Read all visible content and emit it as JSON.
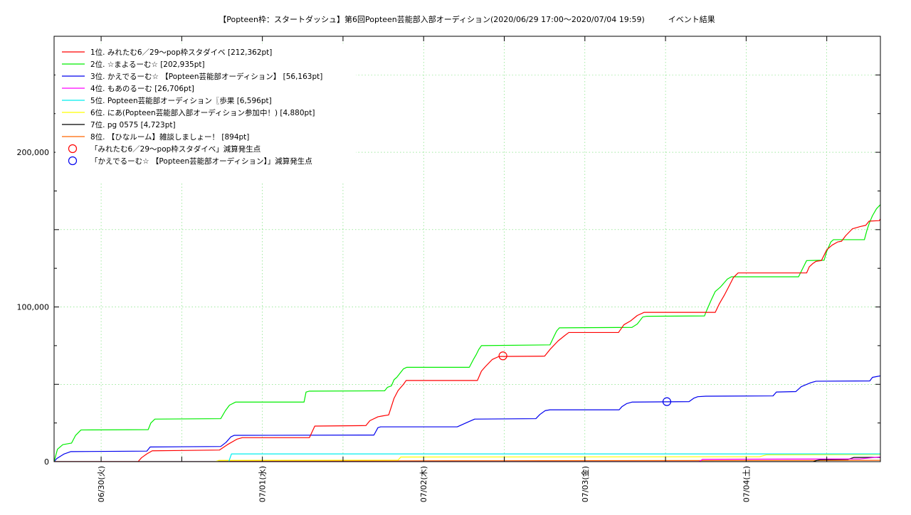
{
  "chart_data": {
    "type": "line",
    "title": "【Popteen枠：スタートダッシュ】第6回Popteen芸能部入部オーディション(2020/06/29 17:00〜2020/07/04 19:59)　　　イベント結果",
    "xlabel": "",
    "ylabel": "",
    "x_unit": "hours since 2020/06/29 17:00",
    "xlim": [
      0,
      122.98
    ],
    "ylim": [
      0,
      275000
    ],
    "grid": true,
    "legend_position": "top-left",
    "y_ticks": [
      {
        "value": 0,
        "label": "0"
      },
      {
        "value": 100000,
        "label": "100,000"
      },
      {
        "value": 200000,
        "label": "200,000"
      }
    ],
    "x_ticks": [
      {
        "value": 7,
        "label": "06/30(火)"
      },
      {
        "value": 31,
        "label": "07/01(水)"
      },
      {
        "value": 55,
        "label": "07/02(木)"
      },
      {
        "value": 79,
        "label": "07/03(金)"
      },
      {
        "value": 103,
        "label": "07/04(土)"
      }
    ],
    "series": [
      {
        "name": "1位. みれたむ6／29〜pop枠スタダイベ [212,362pt]",
        "color": "#ff0000",
        "points": [
          [
            0,
            0
          ],
          [
            12.5,
            0
          ],
          [
            13,
            2500
          ],
          [
            13.8,
            5000
          ],
          [
            14.6,
            7000
          ],
          [
            24.6,
            7500
          ],
          [
            25.8,
            11000
          ],
          [
            27.2,
            14500
          ],
          [
            28,
            15500
          ],
          [
            38,
            15500
          ],
          [
            38.8,
            23000
          ],
          [
            46.4,
            23300
          ],
          [
            47,
            26500
          ],
          [
            48.2,
            29000
          ],
          [
            48.8,
            29500
          ],
          [
            49.8,
            30200
          ],
          [
            50.6,
            41000
          ],
          [
            51.2,
            46000
          ],
          [
            52,
            50000
          ],
          [
            52.4,
            52500
          ],
          [
            63,
            52500
          ],
          [
            63.6,
            58500
          ],
          [
            64.2,
            61500
          ],
          [
            65.2,
            66000
          ],
          [
            66.2,
            68000
          ],
          [
            73,
            68200
          ],
          [
            73.8,
            72500
          ],
          [
            75,
            78000
          ],
          [
            76,
            81500
          ],
          [
            76.6,
            83500
          ],
          [
            84,
            83500
          ],
          [
            84.8,
            88500
          ],
          [
            85.8,
            91000
          ],
          [
            86.8,
            94500
          ],
          [
            87.8,
            96500
          ],
          [
            98.4,
            96500
          ],
          [
            99,
            102000
          ],
          [
            99.8,
            108000
          ],
          [
            100.4,
            113000
          ],
          [
            101.1,
            119000
          ],
          [
            101.8,
            122000
          ],
          [
            112,
            122000
          ],
          [
            112.4,
            126000
          ],
          [
            112.9,
            128000
          ],
          [
            113.4,
            129500
          ],
          [
            114.2,
            130000
          ],
          [
            115,
            137000
          ],
          [
            115.8,
            140000
          ],
          [
            116.6,
            142000
          ],
          [
            117.2,
            142500
          ],
          [
            117.8,
            146000
          ],
          [
            118.8,
            150500
          ],
          [
            120,
            152000
          ],
          [
            120.8,
            152800
          ],
          [
            121.3,
            155500
          ],
          [
            122.8,
            155800
          ],
          [
            123.6,
            160500
          ],
          [
            124.4,
            165000
          ],
          [
            125.2,
            170000
          ],
          [
            125.8,
            171500
          ],
          [
            126.6,
            176500
          ],
          [
            127.6,
            179000
          ],
          [
            129.6,
            179200
          ],
          [
            130,
            195000
          ],
          [
            130.2,
            211500
          ],
          [
            132.5,
            212362
          ]
        ]
      },
      {
        "name": "2位. ☆まよるーむ☆ [202,935pt]",
        "color": "#00ee00",
        "points": [
          [
            0,
            0
          ],
          [
            0.5,
            8000
          ],
          [
            1.3,
            11000
          ],
          [
            2.6,
            12000
          ],
          [
            3.2,
            17000
          ],
          [
            4,
            20500
          ],
          [
            14,
            20700
          ],
          [
            14.4,
            25000
          ],
          [
            15,
            27500
          ],
          [
            24.8,
            27800
          ],
          [
            25.5,
            33000
          ],
          [
            26.1,
            36500
          ],
          [
            27,
            38500
          ],
          [
            37.2,
            38500
          ],
          [
            37.5,
            45000
          ],
          [
            38,
            45600
          ],
          [
            49.2,
            45800
          ],
          [
            49.6,
            48000
          ],
          [
            50.2,
            49000
          ],
          [
            50.6,
            53000
          ],
          [
            51,
            54500
          ],
          [
            52,
            60000
          ],
          [
            52.5,
            61000
          ],
          [
            61.8,
            61000
          ],
          [
            62.4,
            66000
          ],
          [
            62.8,
            69000
          ],
          [
            63.2,
            72500
          ],
          [
            63.6,
            75000
          ],
          [
            73.8,
            75500
          ],
          [
            74.4,
            81000
          ],
          [
            74.8,
            84500
          ],
          [
            75.2,
            86500
          ],
          [
            86,
            86800
          ],
          [
            86.8,
            89000
          ],
          [
            87.6,
            93500
          ],
          [
            88.2,
            94000
          ],
          [
            96.8,
            94200
          ],
          [
            97,
            96500
          ],
          [
            97.8,
            104500
          ],
          [
            98.4,
            110000
          ],
          [
            99.2,
            113000
          ],
          [
            100.2,
            118000
          ],
          [
            100.8,
            119500
          ],
          [
            110.8,
            119500
          ],
          [
            111.6,
            126500
          ],
          [
            112,
            130000
          ],
          [
            114.6,
            130200
          ],
          [
            115,
            136000
          ],
          [
            115.6,
            142000
          ],
          [
            116,
            143500
          ],
          [
            120.6,
            143500
          ],
          [
            121,
            150000
          ],
          [
            121.4,
            155000
          ],
          [
            121.8,
            159000
          ],
          [
            122.4,
            163500
          ],
          [
            123.4,
            168000
          ],
          [
            123.8,
            171000
          ],
          [
            124.6,
            177000
          ],
          [
            125.6,
            184500
          ],
          [
            126.2,
            191000
          ],
          [
            127,
            198000
          ],
          [
            127.6,
            202800
          ],
          [
            130.2,
            202935
          ]
        ]
      },
      {
        "name": "3位. かえでるーむ☆ 【Popteen芸能部オーディション】 [56,163pt]",
        "color": "#0000ee",
        "points": [
          [
            0,
            0
          ],
          [
            0.4,
            2000
          ],
          [
            1.5,
            5000
          ],
          [
            2.5,
            6500
          ],
          [
            13.8,
            6800
          ],
          [
            14.3,
            9500
          ],
          [
            24.8,
            9800
          ],
          [
            25.6,
            12500
          ],
          [
            26.3,
            16000
          ],
          [
            26.8,
            17000
          ],
          [
            47.6,
            17200
          ],
          [
            48.2,
            22000
          ],
          [
            48.6,
            22500
          ],
          [
            60,
            22500
          ],
          [
            61.8,
            26000
          ],
          [
            62.6,
            27500
          ],
          [
            71.7,
            27800
          ],
          [
            72.3,
            30500
          ],
          [
            73.1,
            33000
          ],
          [
            73.8,
            33500
          ],
          [
            84.1,
            33500
          ],
          [
            84.5,
            35500
          ],
          [
            85.2,
            37500
          ],
          [
            86,
            38500
          ],
          [
            94.5,
            38800
          ],
          [
            95.2,
            41000
          ],
          [
            95.8,
            42000
          ],
          [
            97,
            42300
          ],
          [
            107,
            42500
          ],
          [
            107.5,
            45000
          ],
          [
            110.4,
            45300
          ],
          [
            111.2,
            48500
          ],
          [
            112.6,
            51000
          ],
          [
            113.4,
            52000
          ],
          [
            121.4,
            52200
          ],
          [
            121.8,
            54500
          ],
          [
            123,
            55500
          ],
          [
            124.7,
            56163
          ],
          [
            132.5,
            56163
          ]
        ]
      },
      {
        "name": "4位. もあのるーむ [26,706pt]",
        "color": "#ff00ff",
        "points": [
          [
            0,
            0
          ],
          [
            96,
            0
          ],
          [
            96.5,
            1500
          ],
          [
            120,
            1800
          ],
          [
            122.8,
            3000
          ],
          [
            126,
            4000
          ],
          [
            126.8,
            6500
          ],
          [
            127.4,
            12000
          ],
          [
            127.8,
            18000
          ],
          [
            128.4,
            20000
          ],
          [
            128.8,
            20500
          ],
          [
            129.2,
            26500
          ],
          [
            132.5,
            26706
          ]
        ]
      },
      {
        "name": "5位. Popteen芸能部オーディション〖歩果 [6,596pt]",
        "color": "#00eeee",
        "points": [
          [
            0,
            0
          ],
          [
            26,
            0
          ],
          [
            26.4,
            5000
          ],
          [
            128,
            5000
          ],
          [
            129,
            6400
          ],
          [
            132.5,
            6596
          ]
        ]
      },
      {
        "name": "6位. にあ(Popteen芸能部入部オーディション参加中！) [4,880pt]",
        "color": "#ffff00",
        "points": [
          [
            0,
            0
          ],
          [
            24,
            0
          ],
          [
            24.5,
            800
          ],
          [
            51.2,
            1000
          ],
          [
            51.6,
            3000
          ],
          [
            105,
            3200
          ],
          [
            106,
            4400
          ],
          [
            132.5,
            4880
          ]
        ]
      },
      {
        "name": "7位. pg 0575 [4,723pt]",
        "color": "#000000",
        "points": [
          [
            0,
            0
          ],
          [
            113,
            0
          ],
          [
            113.5,
            800
          ],
          [
            114,
            1200
          ],
          [
            118.2,
            1500
          ],
          [
            119,
            2700
          ],
          [
            125.4,
            2800
          ],
          [
            126.4,
            4500
          ],
          [
            132.5,
            4723
          ]
        ]
      },
      {
        "name": "8位. 【ひなルーム】雑談しましょー！ [894pt]",
        "color": "#ff6600",
        "points": [
          [
            0,
            0
          ],
          [
            24,
            0
          ],
          [
            24.4,
            400
          ],
          [
            67,
            600
          ],
          [
            132.5,
            894
          ]
        ]
      }
    ],
    "markers": [
      {
        "name": "「みれたむ6／29〜pop枠スタダイベ」減算発生点",
        "color": "#ff0000",
        "x": 66.8,
        "y": 68400
      },
      {
        "name": "「かえでるーむ☆ 【Popteen芸能部オーディション】」減算発生点",
        "color": "#0000ee",
        "x": 91.2,
        "y": 38800
      }
    ]
  }
}
